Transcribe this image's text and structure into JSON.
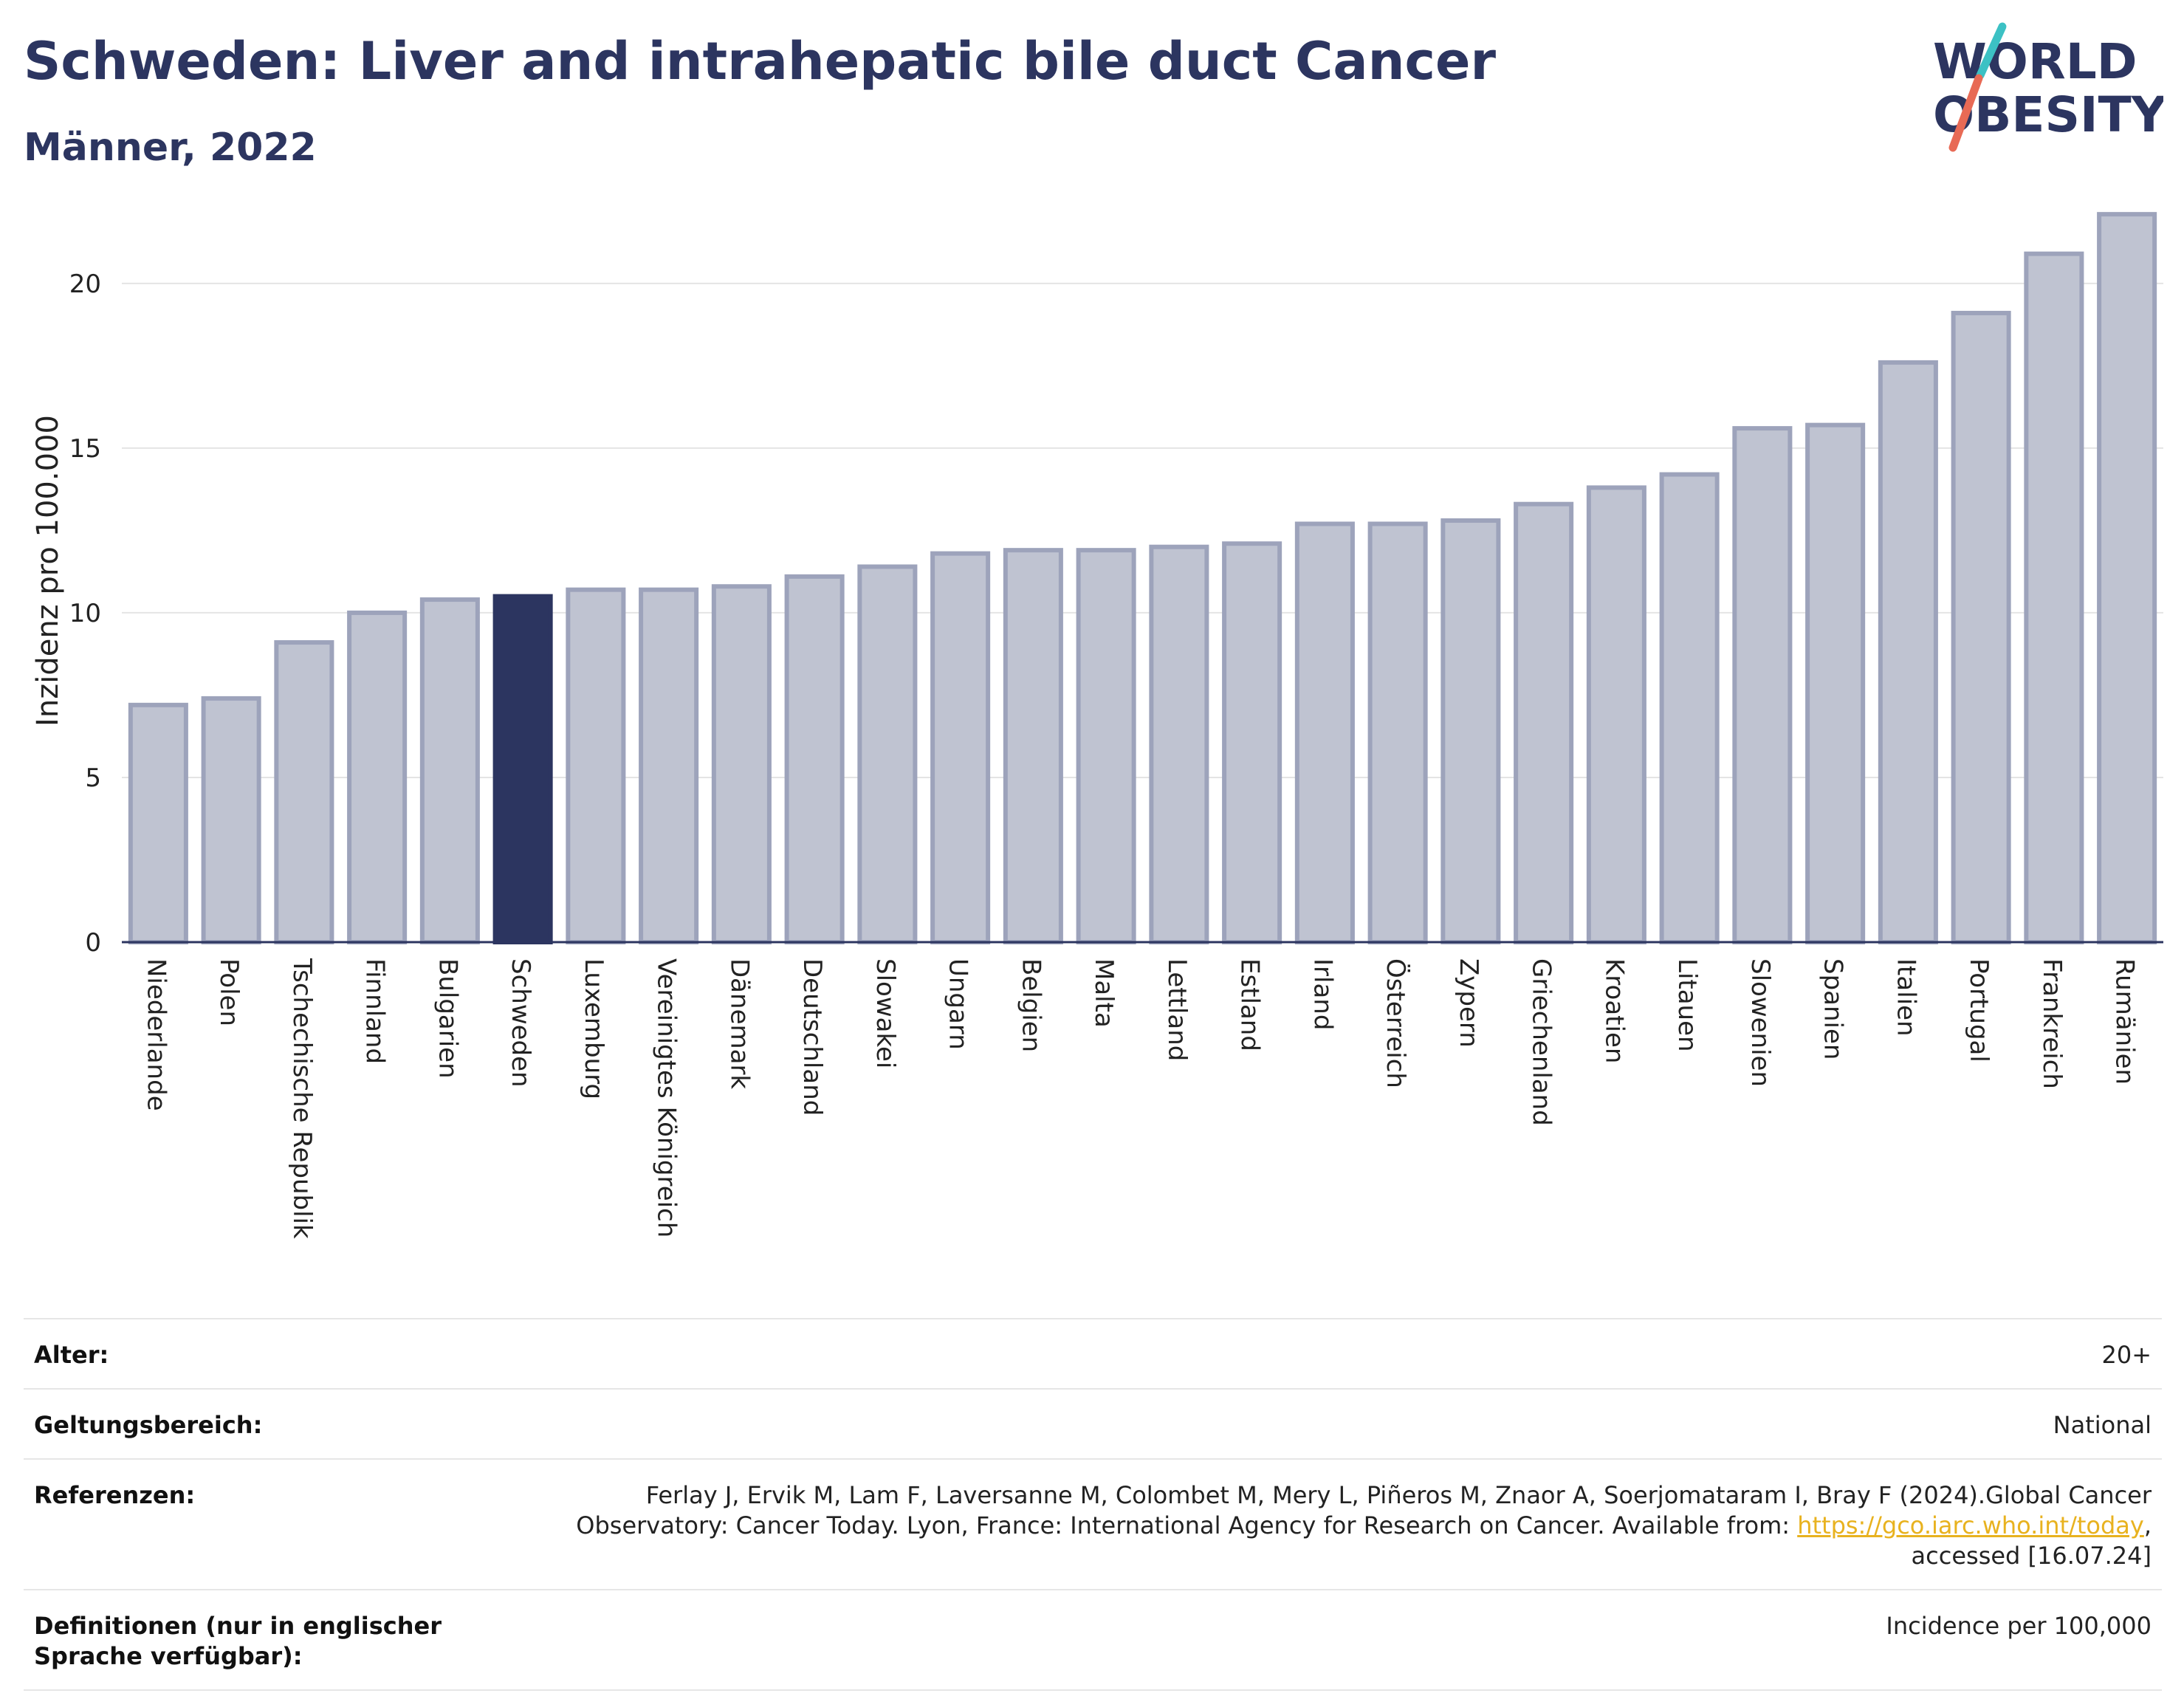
{
  "header": {
    "title": "Schweden: Liver and intrahepatic bile duct Cancer",
    "subtitle": "Männer, 2022"
  },
  "logo": {
    "line1": "WORLD",
    "line2": "OBESITY",
    "colors": {
      "text": "#2c3560",
      "slash_teal": "#3cc1c4",
      "slash_coral": "#e86a55"
    }
  },
  "chart_data": {
    "type": "bar",
    "ylabel": "Inzidenz pro 100.000",
    "xlabel": "",
    "ylim": [
      0,
      23
    ],
    "yticks": [
      0,
      5,
      10,
      15,
      20
    ],
    "grid": true,
    "categories": [
      "Niederlande",
      "Polen",
      "Tschechische Republik",
      "Finnland",
      "Bulgarien",
      "Schweden",
      "Luxemburg",
      "Vereinigtes Königreich",
      "Dänemark",
      "Deutschland",
      "Slowakei",
      "Ungarn",
      "Belgien",
      "Malta",
      "Lettland",
      "Estland",
      "Irland",
      "Österreich",
      "Zypern",
      "Griechenland",
      "Kroatien",
      "Litauen",
      "Slowenien",
      "Spanien",
      "Italien",
      "Portugal",
      "Frankreich",
      "Rumänien"
    ],
    "values": [
      7.2,
      7.4,
      9.1,
      10.0,
      10.4,
      10.5,
      10.7,
      10.7,
      10.8,
      11.1,
      11.4,
      11.8,
      11.9,
      11.9,
      12.0,
      12.1,
      12.7,
      12.7,
      12.8,
      13.3,
      13.8,
      14.2,
      15.6,
      15.7,
      17.6,
      19.1,
      20.9,
      22.1
    ],
    "highlight": "Schweden",
    "colors": {
      "bar": "#bfc3d1",
      "bar_edge": "#9da3bb",
      "highlight": "#2c3560"
    }
  },
  "meta": [
    {
      "key": "Alter:",
      "value": "20+"
    },
    {
      "key": "Geltungsbereich:",
      "value": "National"
    },
    {
      "key": "Referenzen:",
      "value_pre": "Ferlay J, Ervik M, Lam F, Laversanne M, Colombet M, Mery L, Piñeros M, Znaor A, Soerjomataram I, Bray F (2024).Global Cancer Observatory: Cancer Today. Lyon, France: International Agency for Research on Cancer. Available from: ",
      "link": "https://gco.iarc.who.int/today",
      "value_post": ", accessed [16.07.24]"
    },
    {
      "key": "Definitionen (nur in englischer Sprache verfügbar):",
      "value": "Incidence per 100,000"
    }
  ]
}
